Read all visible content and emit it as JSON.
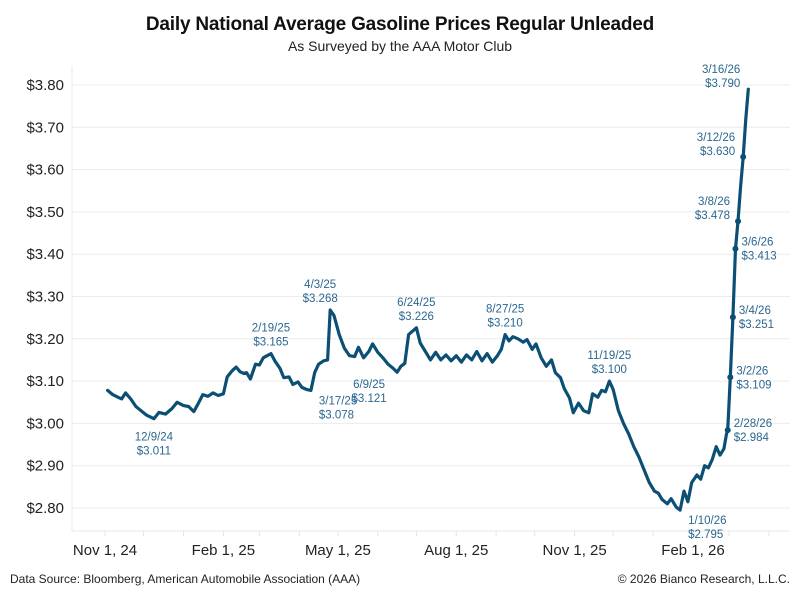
{
  "chart_data": {
    "type": "line",
    "title": "Daily National Average Gasoline Prices Regular Unleaded",
    "subtitle": "As Surveyed by the AAA Motor Club",
    "xlabel": "",
    "ylabel": "",
    "ylim": [
      2.75,
      3.82
    ],
    "yticks": [
      2.8,
      2.9,
      3.0,
      3.1,
      3.2,
      3.3,
      3.4,
      3.5,
      3.6,
      3.7,
      3.8
    ],
    "ytick_labels": [
      "$2.80",
      "$2.90",
      "$3.00",
      "$3.10",
      "$3.20",
      "$3.30",
      "$3.40",
      "$3.50",
      "$3.60",
      "$3.70",
      "$3.80"
    ],
    "xlim": [
      "2024-10-06",
      "2026-04-01"
    ],
    "xticks": [
      "2024-11-01",
      "2025-02-01",
      "2025-05-01",
      "2025-08-01",
      "2025-11-01",
      "2026-02-01"
    ],
    "xtick_labels": [
      "Nov 1, 24",
      "Feb 1, 25",
      "May 1, 25",
      "Aug 1, 25",
      "Nov 1, 25",
      "Feb 1, 26"
    ],
    "grid": true,
    "line_color": "#0b4f75",
    "annotation_color": "#2b6790",
    "series": [
      {
        "name": "Regular Unleaded",
        "points": [
          [
            "2024-11-03",
            3.078
          ],
          [
            "2024-11-07",
            3.068
          ],
          [
            "2024-11-11",
            3.062
          ],
          [
            "2024-11-14",
            3.058
          ],
          [
            "2024-11-17",
            3.072
          ],
          [
            "2024-11-21",
            3.058
          ],
          [
            "2024-11-25",
            3.04
          ],
          [
            "2024-11-29",
            3.03
          ],
          [
            "2024-12-03",
            3.02
          ],
          [
            "2024-12-09",
            3.011
          ],
          [
            "2024-12-13",
            3.026
          ],
          [
            "2024-12-18",
            3.022
          ],
          [
            "2024-12-23",
            3.035
          ],
          [
            "2024-12-27",
            3.05
          ],
          [
            "2025-01-01",
            3.042
          ],
          [
            "2025-01-05",
            3.04
          ],
          [
            "2025-01-09",
            3.028
          ],
          [
            "2025-01-13",
            3.05
          ],
          [
            "2025-01-16",
            3.068
          ],
          [
            "2025-01-20",
            3.064
          ],
          [
            "2025-01-24",
            3.072
          ],
          [
            "2025-01-28",
            3.066
          ],
          [
            "2025-02-01",
            3.07
          ],
          [
            "2025-02-04",
            3.11
          ],
          [
            "2025-02-08",
            3.125
          ],
          [
            "2025-02-11",
            3.133
          ],
          [
            "2025-02-14",
            3.122
          ],
          [
            "2025-02-17",
            3.118
          ],
          [
            "2025-02-19",
            3.12
          ],
          [
            "2025-02-22",
            3.105
          ],
          [
            "2025-02-26",
            3.14
          ],
          [
            "2025-03-01",
            3.138
          ],
          [
            "2025-03-04",
            3.155
          ],
          [
            "2025-03-07",
            3.16
          ],
          [
            "2025-03-10",
            3.165
          ],
          [
            "2025-03-13",
            3.148
          ],
          [
            "2025-03-17",
            3.13
          ],
          [
            "2025-03-20",
            3.108
          ],
          [
            "2025-03-24",
            3.11
          ],
          [
            "2025-03-27",
            3.092
          ],
          [
            "2025-03-31",
            3.098
          ],
          [
            "2025-04-03",
            3.085
          ],
          [
            "2025-04-07",
            3.08
          ],
          [
            "2025-04-10",
            3.078
          ],
          [
            "2025-04-13",
            3.12
          ],
          [
            "2025-04-16",
            3.14
          ],
          [
            "2025-04-20",
            3.148
          ],
          [
            "2025-04-23",
            3.15
          ],
          [
            "2025-04-25",
            3.268
          ],
          [
            "2025-04-28",
            3.255
          ],
          [
            "2025-05-02",
            3.21
          ],
          [
            "2025-05-06",
            3.178
          ],
          [
            "2025-05-10",
            3.16
          ],
          [
            "2025-05-14",
            3.158
          ],
          [
            "2025-05-17",
            3.18
          ],
          [
            "2025-05-21",
            3.155
          ],
          [
            "2025-05-25",
            3.17
          ],
          [
            "2025-05-28",
            3.188
          ],
          [
            "2025-06-01",
            3.168
          ],
          [
            "2025-06-05",
            3.155
          ],
          [
            "2025-06-09",
            3.14
          ],
          [
            "2025-06-13",
            3.13
          ],
          [
            "2025-06-16",
            3.121
          ],
          [
            "2025-06-19",
            3.135
          ],
          [
            "2025-06-22",
            3.142
          ],
          [
            "2025-06-25",
            3.21
          ],
          [
            "2025-06-28",
            3.218
          ],
          [
            "2025-07-01",
            3.226
          ],
          [
            "2025-07-04",
            3.19
          ],
          [
            "2025-07-08",
            3.17
          ],
          [
            "2025-07-12",
            3.15
          ],
          [
            "2025-07-16",
            3.168
          ],
          [
            "2025-07-20",
            3.15
          ],
          [
            "2025-07-24",
            3.162
          ],
          [
            "2025-07-28",
            3.148
          ],
          [
            "2025-08-01",
            3.16
          ],
          [
            "2025-08-05",
            3.145
          ],
          [
            "2025-08-09",
            3.162
          ],
          [
            "2025-08-13",
            3.15
          ],
          [
            "2025-08-17",
            3.17
          ],
          [
            "2025-08-21",
            3.148
          ],
          [
            "2025-08-25",
            3.165
          ],
          [
            "2025-08-29",
            3.145
          ],
          [
            "2025-09-02",
            3.16
          ],
          [
            "2025-09-05",
            3.175
          ],
          [
            "2025-09-08",
            3.21
          ],
          [
            "2025-09-11",
            3.195
          ],
          [
            "2025-09-14",
            3.205
          ],
          [
            "2025-09-18",
            3.2
          ],
          [
            "2025-09-22",
            3.192
          ],
          [
            "2025-09-25",
            3.198
          ],
          [
            "2025-09-29",
            3.175
          ],
          [
            "2025-10-02",
            3.188
          ],
          [
            "2025-10-06",
            3.155
          ],
          [
            "2025-10-10",
            3.135
          ],
          [
            "2025-10-14",
            3.15
          ],
          [
            "2025-10-17",
            3.12
          ],
          [
            "2025-10-21",
            3.108
          ],
          [
            "2025-10-24",
            3.082
          ],
          [
            "2025-10-28",
            3.06
          ],
          [
            "2025-10-31",
            3.025
          ],
          [
            "2025-11-04",
            3.048
          ],
          [
            "2025-11-08",
            3.03
          ],
          [
            "2025-11-12",
            3.025
          ],
          [
            "2025-11-15",
            3.07
          ],
          [
            "2025-11-19",
            3.062
          ],
          [
            "2025-11-22",
            3.078
          ],
          [
            "2025-11-25",
            3.075
          ],
          [
            "2025-11-28",
            3.1
          ],
          [
            "2025-12-01",
            3.08
          ],
          [
            "2025-12-05",
            3.03
          ],
          [
            "2025-12-09",
            3.0
          ],
          [
            "2025-12-13",
            2.975
          ],
          [
            "2025-12-17",
            2.945
          ],
          [
            "2025-12-21",
            2.92
          ],
          [
            "2025-12-25",
            2.89
          ],
          [
            "2025-12-29",
            2.86
          ],
          [
            "2026-01-02",
            2.84
          ],
          [
            "2026-01-05",
            2.835
          ],
          [
            "2026-01-08",
            2.82
          ],
          [
            "2026-01-12",
            2.81
          ],
          [
            "2026-01-15",
            2.822
          ],
          [
            "2026-01-19",
            2.802
          ],
          [
            "2026-01-22",
            2.795
          ],
          [
            "2026-01-25",
            2.84
          ],
          [
            "2026-01-28",
            2.815
          ],
          [
            "2026-01-31",
            2.86
          ],
          [
            "2026-02-04",
            2.878
          ],
          [
            "2026-02-07",
            2.868
          ],
          [
            "2026-02-10",
            2.9
          ],
          [
            "2026-02-13",
            2.895
          ],
          [
            "2026-02-16",
            2.915
          ],
          [
            "2026-02-19",
            2.945
          ],
          [
            "2026-02-22",
            2.925
          ],
          [
            "2026-02-25",
            2.94
          ],
          [
            "2026-02-27",
            2.975
          ],
          [
            "2026-02-28",
            2.984
          ],
          [
            "2026-03-02",
            3.109
          ],
          [
            "2026-03-04",
            3.251
          ],
          [
            "2026-03-06",
            3.413
          ],
          [
            "2026-03-08",
            3.478
          ],
          [
            "2026-03-10",
            3.56
          ],
          [
            "2026-03-12",
            3.63
          ],
          [
            "2026-03-14",
            3.72
          ],
          [
            "2026-03-16",
            3.79
          ]
        ]
      }
    ],
    "annotations": [
      {
        "date_label": "12/9/24",
        "value_label": "$3.011",
        "x": "2024-12-09",
        "y": 3.011,
        "position": "below",
        "marker": false
      },
      {
        "date_label": "2/19/25",
        "value_label": "$3.165",
        "x": "2025-03-10",
        "y": 3.165,
        "position": "above",
        "marker": false
      },
      {
        "date_label": "4/3/25",
        "value_label": "$3.268",
        "x": "2025-04-25",
        "y": 3.268,
        "position": "above-left",
        "marker": false
      },
      {
        "date_label": "3/17/25",
        "value_label": "$3.078",
        "x": "2025-04-10",
        "y": 3.078,
        "position": "below-right",
        "marker": false
      },
      {
        "date_label": "6/9/25",
        "value_label": "$3.121",
        "x": "2025-06-16",
        "y": 3.121,
        "position": "below-left",
        "marker": false
      },
      {
        "date_label": "6/24/25",
        "value_label": "$3.226",
        "x": "2025-07-01",
        "y": 3.226,
        "position": "above",
        "marker": false
      },
      {
        "date_label": "8/27/25",
        "value_label": "$3.210",
        "x": "2025-09-08",
        "y": 3.21,
        "position": "above",
        "marker": false
      },
      {
        "date_label": "11/19/25",
        "value_label": "$3.100",
        "x": "2025-11-28",
        "y": 3.1,
        "position": "above",
        "marker": false
      },
      {
        "date_label": "1/10/26",
        "value_label": "$2.795",
        "x": "2026-01-22",
        "y": 2.795,
        "position": "below-right",
        "marker": false
      },
      {
        "date_label": "2/28/26",
        "value_label": "$2.984",
        "x": "2026-02-28",
        "y": 2.984,
        "position": "right",
        "marker": true
      },
      {
        "date_label": "3/2/26",
        "value_label": "$3.109",
        "x": "2026-03-02",
        "y": 3.109,
        "position": "right",
        "marker": true
      },
      {
        "date_label": "3/4/26",
        "value_label": "$3.251",
        "x": "2026-03-04",
        "y": 3.251,
        "position": "right",
        "marker": true
      },
      {
        "date_label": "3/6/26",
        "value_label": "$3.413",
        "x": "2026-03-06",
        "y": 3.413,
        "position": "right",
        "marker": true
      },
      {
        "date_label": "3/8/26",
        "value_label": "$3.478",
        "x": "2026-03-08",
        "y": 3.478,
        "position": "left",
        "marker": true
      },
      {
        "date_label": "3/12/26",
        "value_label": "$3.630",
        "x": "2026-03-12",
        "y": 3.63,
        "position": "left",
        "marker": true
      },
      {
        "date_label": "3/16/26",
        "value_label": "$3.790",
        "x": "2026-03-16",
        "y": 3.79,
        "position": "left",
        "marker": false
      }
    ]
  },
  "footer": {
    "source": "Data Source: Bloomberg, American Automobile Association (AAA)",
    "copyright": "© 2026 Bianco Research, L.L.C."
  }
}
